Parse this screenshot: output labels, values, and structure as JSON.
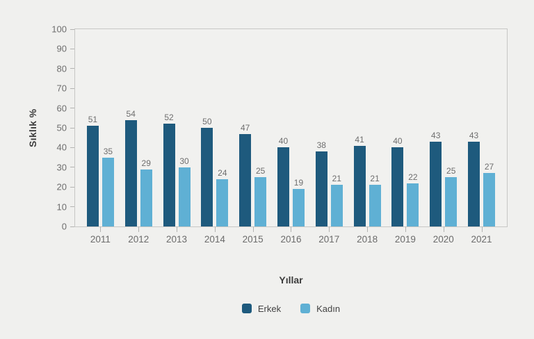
{
  "page": {
    "background": "#f0f0ee"
  },
  "chart_data": {
    "type": "bar",
    "title": "",
    "categories": [
      "2011",
      "2012",
      "2013",
      "2014",
      "2015",
      "2016",
      "2017",
      "2018",
      "2019",
      "2020",
      "2021"
    ],
    "series": [
      {
        "name": "Erkek",
        "color": "#1e5a7d",
        "values": [
          51,
          54,
          52,
          50,
          47,
          40,
          38,
          41,
          40,
          43,
          43
        ]
      },
      {
        "name": "Kadın",
        "color": "#5fb0d4",
        "values": [
          35,
          29,
          30,
          24,
          25,
          19,
          21,
          21,
          22,
          25,
          27
        ]
      }
    ],
    "xlabel": "Yıllar",
    "ylabel": "Sıklık %",
    "ylim": [
      0,
      100
    ],
    "y_ticks": [
      0,
      10,
      20,
      30,
      40,
      50,
      60,
      70,
      80,
      90,
      100
    ],
    "grid": false,
    "legend_position": "bottom",
    "bar_value_labels": true,
    "value_label_color": "#6e6e6e",
    "axis_color": "#c7c7c5",
    "tick_color": "#b3b3b1"
  }
}
